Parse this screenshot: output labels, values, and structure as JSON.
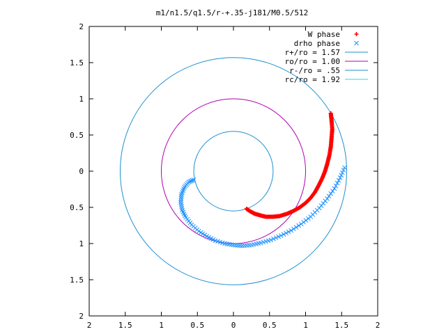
{
  "chart_data": {
    "type": "scatter",
    "title": "m1/n1.5/q1.5/r-+.35-j181/M0.5/512",
    "xlim": [
      -2,
      2
    ],
    "ylim": [
      -2,
      2
    ],
    "x_ticks": [
      "2",
      "1.5",
      "1",
      "0.5",
      "0",
      "0.5",
      "1",
      "1.5",
      "2"
    ],
    "y_ticks": [
      "2",
      "1.5",
      "1",
      "0.5",
      "0",
      "0.5",
      "1",
      "1.5",
      "2"
    ],
    "legend_position": "top-right",
    "grid": false,
    "colors": {
      "w_phase": "#ff0000",
      "drho_phase": "#1e90ff",
      "r_plus": "#1f8fd0",
      "r_o": "#b000b0",
      "r_minus": "#1f8fd0",
      "r_c": "#36d0e0"
    },
    "legend": [
      {
        "label": "W phase",
        "key": "w_phase",
        "marker": "+"
      },
      {
        "label": "drho phase",
        "key": "drho_phase",
        "marker": "x"
      },
      {
        "label": "r+/ro = 1.57",
        "key": "r_plus",
        "marker": "line"
      },
      {
        "label": "ro/ro = 1.00",
        "key": "r_o",
        "marker": "line"
      },
      {
        "label": "r-/ro = .55",
        "key": "r_minus",
        "marker": "line"
      },
      {
        "label": "rc/ro = 1.92",
        "key": "r_c",
        "marker": "line"
      }
    ],
    "circles": [
      {
        "key": "r_plus",
        "radius": 1.57
      },
      {
        "key": "r_o",
        "radius": 1.0
      },
      {
        "key": "r_minus",
        "radius": 0.55
      }
    ],
    "series": [
      {
        "name": "W phase",
        "key": "w_phase",
        "marker": "+",
        "points": [
          [
            0.18,
            -0.52
          ],
          [
            0.24,
            -0.56
          ],
          [
            0.3,
            -0.59
          ],
          [
            0.37,
            -0.61
          ],
          [
            0.45,
            -0.63
          ],
          [
            0.55,
            -0.63
          ],
          [
            0.64,
            -0.62
          ],
          [
            0.74,
            -0.59
          ],
          [
            0.83,
            -0.55
          ],
          [
            0.92,
            -0.5
          ],
          [
            1.0,
            -0.44
          ],
          [
            1.07,
            -0.37
          ],
          [
            1.13,
            -0.29
          ],
          [
            1.18,
            -0.2
          ],
          [
            1.23,
            -0.1
          ],
          [
            1.27,
            0.0
          ],
          [
            1.3,
            0.1
          ],
          [
            1.33,
            0.22
          ],
          [
            1.35,
            0.34
          ],
          [
            1.36,
            0.46
          ],
          [
            1.37,
            0.58
          ],
          [
            1.36,
            0.7
          ],
          [
            1.35,
            0.8
          ]
        ]
      },
      {
        "name": "drho phase",
        "key": "drho_phase",
        "marker": "x",
        "points": [
          [
            -0.55,
            -0.12
          ],
          [
            -0.62,
            -0.15
          ],
          [
            -0.68,
            -0.22
          ],
          [
            -0.72,
            -0.32
          ],
          [
            -0.73,
            -0.43
          ],
          [
            -0.71,
            -0.54
          ],
          [
            -0.66,
            -0.64
          ],
          [
            -0.58,
            -0.74
          ],
          [
            -0.48,
            -0.83
          ],
          [
            -0.37,
            -0.9
          ],
          [
            -0.25,
            -0.96
          ],
          [
            -0.12,
            -1.0
          ],
          [
            0.0,
            -1.02
          ],
          [
            0.12,
            -1.03
          ],
          [
            0.25,
            -1.02
          ],
          [
            0.38,
            -0.99
          ],
          [
            0.52,
            -0.95
          ],
          [
            0.66,
            -0.89
          ],
          [
            0.8,
            -0.82
          ],
          [
            0.94,
            -0.73
          ],
          [
            1.07,
            -0.63
          ],
          [
            1.19,
            -0.51
          ],
          [
            1.3,
            -0.38
          ],
          [
            1.4,
            -0.24
          ],
          [
            1.48,
            -0.09
          ],
          [
            1.54,
            0.05
          ]
        ]
      }
    ]
  }
}
